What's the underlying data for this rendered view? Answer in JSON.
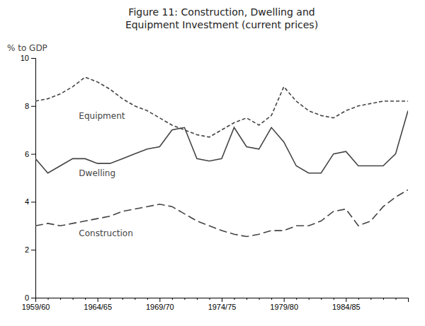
{
  "chart_data": {
    "type": "line",
    "title": "Figure 11: Construction, Dwelling and\nEquipment Investment (current prices)",
    "ylabel": "% to GDP",
    "categories": [
      "1959/60",
      null,
      null,
      null,
      null,
      "1964/65",
      null,
      null,
      null,
      null,
      "1969/70",
      null,
      null,
      null,
      null,
      "1974/75",
      null,
      null,
      null,
      null,
      "1979/80",
      null,
      null,
      null,
      null,
      "1984/85",
      null,
      null,
      null,
      null,
      null
    ],
    "series": [
      {
        "name": "Equipment",
        "color": "#444444",
        "line_style": "dashed",
        "values": [
          8.2,
          8.3,
          8.5,
          8.8,
          9.2,
          9.0,
          8.7,
          8.3,
          8.0,
          7.8,
          7.5,
          7.2,
          7.0,
          6.8,
          6.7,
          7.0,
          7.3,
          7.5,
          7.2,
          7.6,
          8.8,
          8.2,
          7.8,
          7.6,
          7.5,
          7.8,
          8.0,
          8.1,
          8.2,
          8.2,
          8.2
        ]
      },
      {
        "name": "Dwelling",
        "color": "#444444",
        "line_style": "solid",
        "values": [
          5.8,
          5.2,
          5.5,
          5.8,
          5.8,
          5.6,
          5.6,
          5.8,
          6.0,
          6.2,
          6.3,
          7.0,
          7.1,
          5.8,
          5.7,
          5.8,
          7.1,
          6.3,
          6.2,
          7.1,
          6.5,
          5.5,
          5.2,
          5.2,
          6.0,
          6.1,
          5.5,
          5.5,
          5.5,
          6.0,
          7.8
        ]
      },
      {
        "name": "Construction",
        "color": "#444444",
        "line_style": "long-dashed",
        "values": [
          3.0,
          3.1,
          3.0,
          3.1,
          3.2,
          3.3,
          3.4,
          3.6,
          3.7,
          3.8,
          3.9,
          3.8,
          3.5,
          3.2,
          3.0,
          2.8,
          2.65,
          2.55,
          2.65,
          2.8,
          2.8,
          3.0,
          3.0,
          3.2,
          3.6,
          3.7,
          3.0,
          3.2,
          3.8,
          4.2,
          4.5
        ]
      }
    ],
    "ylim": [
      0,
      10
    ],
    "yticks": [
      0,
      2,
      4,
      6,
      8,
      10
    ],
    "grid": false
  }
}
